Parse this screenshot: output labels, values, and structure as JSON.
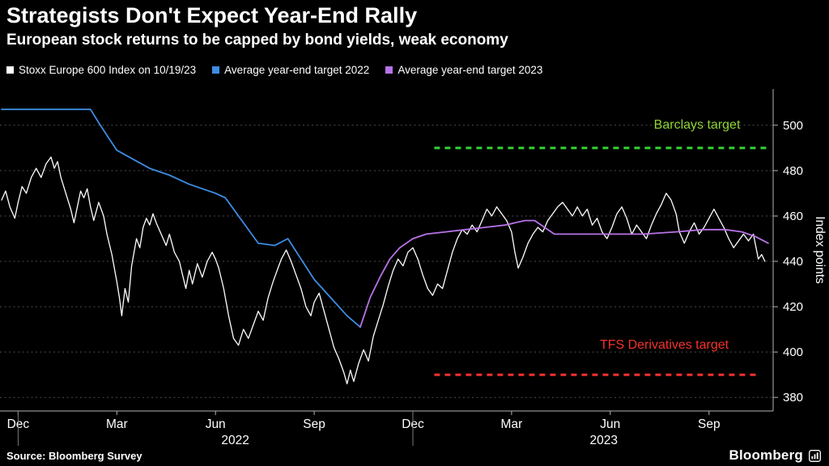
{
  "header": {
    "title": "Strategists Don't Expect Year-End Rally",
    "subtitle": "European stock returns to be capped by bond yields, weak economy"
  },
  "footer": {
    "source": "Source: Bloomberg Survey",
    "brand": "Bloomberg"
  },
  "chart_data": {
    "type": "line",
    "x_unit": "months from Dec 2021",
    "x_range": [
      -0.55,
      22.95
    ],
    "ylim": [
      374,
      516
    ],
    "yticks": [
      380,
      400,
      420,
      440,
      460,
      480,
      500
    ],
    "ylabel": "Index points",
    "grid": true,
    "legend_position": "top",
    "x_ticks": [
      {
        "m": 0,
        "label": "Dec"
      },
      {
        "m": 3,
        "label": "Mar"
      },
      {
        "m": 6,
        "label": "Jun"
      },
      {
        "m": 9,
        "label": "Sep"
      },
      {
        "m": 12,
        "label": "Dec"
      },
      {
        "m": 15,
        "label": "Mar"
      },
      {
        "m": 18,
        "label": "Jun"
      },
      {
        "m": 21,
        "label": "Sep"
      }
    ],
    "year_labels": [
      {
        "m": 6.6,
        "label": "2022"
      },
      {
        "m": 17.8,
        "label": "2023"
      }
    ],
    "year_separators": [
      0,
      12
    ],
    "series": [
      {
        "name": "Stoxx Europe 600 Index on 10/19/23",
        "color": "#ffffff",
        "width": 1.3,
        "points": [
          [
            -0.5,
            467
          ],
          [
            -0.38,
            471
          ],
          [
            -0.25,
            464
          ],
          [
            -0.1,
            459
          ],
          [
            0,
            466
          ],
          [
            0.12,
            473
          ],
          [
            0.25,
            470
          ],
          [
            0.4,
            477
          ],
          [
            0.55,
            481
          ],
          [
            0.7,
            477
          ],
          [
            0.85,
            483
          ],
          [
            1,
            486
          ],
          [
            1.1,
            481
          ],
          [
            1.2,
            484
          ],
          [
            1.3,
            477
          ],
          [
            1.45,
            470
          ],
          [
            1.6,
            463
          ],
          [
            1.7,
            457
          ],
          [
            1.8,
            464
          ],
          [
            1.9,
            471
          ],
          [
            2,
            468
          ],
          [
            2.1,
            472
          ],
          [
            2.2,
            464
          ],
          [
            2.3,
            458
          ],
          [
            2.45,
            466
          ],
          [
            2.6,
            460
          ],
          [
            2.7,
            452
          ],
          [
            2.85,
            443
          ],
          [
            3,
            431
          ],
          [
            3.08,
            424
          ],
          [
            3.15,
            416
          ],
          [
            3.25,
            428
          ],
          [
            3.35,
            422
          ],
          [
            3.45,
            438
          ],
          [
            3.6,
            450
          ],
          [
            3.7,
            446
          ],
          [
            3.8,
            455
          ],
          [
            3.9,
            459
          ],
          [
            4,
            456
          ],
          [
            4.1,
            461
          ],
          [
            4.2,
            457
          ],
          [
            4.35,
            452
          ],
          [
            4.5,
            447
          ],
          [
            4.6,
            452
          ],
          [
            4.75,
            444
          ],
          [
            4.9,
            440
          ],
          [
            5,
            434
          ],
          [
            5.1,
            428
          ],
          [
            5.2,
            436
          ],
          [
            5.3,
            430
          ],
          [
            5.45,
            439
          ],
          [
            5.6,
            433
          ],
          [
            5.75,
            440
          ],
          [
            5.9,
            444
          ],
          [
            6,
            441
          ],
          [
            6.1,
            437
          ],
          [
            6.25,
            428
          ],
          [
            6.4,
            416
          ],
          [
            6.55,
            406
          ],
          [
            6.7,
            403
          ],
          [
            6.85,
            410
          ],
          [
            7,
            406
          ],
          [
            7.15,
            412
          ],
          [
            7.3,
            418
          ],
          [
            7.45,
            414
          ],
          [
            7.6,
            424
          ],
          [
            7.75,
            431
          ],
          [
            7.9,
            437
          ],
          [
            8,
            441
          ],
          [
            8.15,
            445
          ],
          [
            8.3,
            440
          ],
          [
            8.45,
            434
          ],
          [
            8.6,
            428
          ],
          [
            8.75,
            420
          ],
          [
            8.9,
            416
          ],
          [
            9,
            422
          ],
          [
            9.15,
            426
          ],
          [
            9.3,
            418
          ],
          [
            9.45,
            410
          ],
          [
            9.6,
            402
          ],
          [
            9.75,
            397
          ],
          [
            9.9,
            391
          ],
          [
            10,
            386
          ],
          [
            10.1,
            392
          ],
          [
            10.2,
            387
          ],
          [
            10.35,
            395
          ],
          [
            10.5,
            401
          ],
          [
            10.65,
            396
          ],
          [
            10.8,
            407
          ],
          [
            10.95,
            414
          ],
          [
            11.1,
            421
          ],
          [
            11.25,
            429
          ],
          [
            11.4,
            436
          ],
          [
            11.55,
            441
          ],
          [
            11.7,
            438
          ],
          [
            11.85,
            444
          ],
          [
            12,
            446
          ],
          [
            12.15,
            441
          ],
          [
            12.3,
            434
          ],
          [
            12.45,
            428
          ],
          [
            12.6,
            425
          ],
          [
            12.75,
            430
          ],
          [
            12.9,
            428
          ],
          [
            13.05,
            436
          ],
          [
            13.2,
            444
          ],
          [
            13.35,
            450
          ],
          [
            13.5,
            454
          ],
          [
            13.65,
            452
          ],
          [
            13.8,
            456
          ],
          [
            13.95,
            453
          ],
          [
            14.1,
            458
          ],
          [
            14.25,
            463
          ],
          [
            14.4,
            460
          ],
          [
            14.55,
            464
          ],
          [
            14.7,
            461
          ],
          [
            14.85,
            458
          ],
          [
            15,
            453
          ],
          [
            15.1,
            444
          ],
          [
            15.2,
            437
          ],
          [
            15.35,
            442
          ],
          [
            15.5,
            448
          ],
          [
            15.65,
            452
          ],
          [
            15.8,
            455
          ],
          [
            15.95,
            453
          ],
          [
            16.1,
            458
          ],
          [
            16.25,
            461
          ],
          [
            16.4,
            464
          ],
          [
            16.55,
            466
          ],
          [
            16.7,
            463
          ],
          [
            16.85,
            460
          ],
          [
            17,
            464
          ],
          [
            17.15,
            460
          ],
          [
            17.3,
            463
          ],
          [
            17.45,
            456
          ],
          [
            17.6,
            459
          ],
          [
            17.75,
            453
          ],
          [
            17.9,
            450
          ],
          [
            18.05,
            455
          ],
          [
            18.2,
            461
          ],
          [
            18.35,
            464
          ],
          [
            18.5,
            459
          ],
          [
            18.65,
            452
          ],
          [
            18.8,
            456
          ],
          [
            18.95,
            453
          ],
          [
            19.1,
            450
          ],
          [
            19.25,
            456
          ],
          [
            19.4,
            461
          ],
          [
            19.55,
            465
          ],
          [
            19.7,
            470
          ],
          [
            19.85,
            467
          ],
          [
            20,
            461
          ],
          [
            20.1,
            453
          ],
          [
            20.25,
            448
          ],
          [
            20.4,
            453
          ],
          [
            20.55,
            457
          ],
          [
            20.7,
            452
          ],
          [
            20.85,
            455
          ],
          [
            21,
            459
          ],
          [
            21.15,
            463
          ],
          [
            21.3,
            459
          ],
          [
            21.45,
            455
          ],
          [
            21.6,
            450
          ],
          [
            21.75,
            446
          ],
          [
            21.9,
            449
          ],
          [
            22.05,
            452
          ],
          [
            22.2,
            449
          ],
          [
            22.35,
            452
          ],
          [
            22.5,
            441
          ],
          [
            22.6,
            443
          ],
          [
            22.7,
            440
          ]
        ]
      },
      {
        "name": "Average year-end target 2022",
        "color": "#3d8de3",
        "width": 1.8,
        "points": [
          [
            -0.5,
            507
          ],
          [
            0.5,
            507
          ],
          [
            1.5,
            507
          ],
          [
            2.2,
            507
          ],
          [
            2.5,
            500
          ],
          [
            3,
            489
          ],
          [
            3.5,
            485
          ],
          [
            4,
            481
          ],
          [
            4.6,
            478
          ],
          [
            5.2,
            474
          ],
          [
            6,
            470
          ],
          [
            6.3,
            468
          ],
          [
            6.8,
            458
          ],
          [
            7.3,
            448
          ],
          [
            7.8,
            447
          ],
          [
            8.2,
            450
          ],
          [
            8.6,
            441
          ],
          [
            9,
            432
          ],
          [
            9.5,
            424
          ],
          [
            10,
            416
          ],
          [
            10.4,
            411
          ]
        ]
      },
      {
        "name": "Average year-end target 2023",
        "color": "#b873e8",
        "width": 1.8,
        "points": [
          [
            10.4,
            411
          ],
          [
            10.7,
            424
          ],
          [
            11,
            433
          ],
          [
            11.3,
            441
          ],
          [
            11.6,
            446
          ],
          [
            12,
            450
          ],
          [
            12.4,
            452
          ],
          [
            13,
            453
          ],
          [
            13.6,
            454
          ],
          [
            14.2,
            455
          ],
          [
            14.8,
            456
          ],
          [
            15.4,
            458
          ],
          [
            15.7,
            458
          ],
          [
            16,
            455
          ],
          [
            16.3,
            452
          ],
          [
            17,
            452
          ],
          [
            18,
            452
          ],
          [
            19,
            452
          ],
          [
            20,
            453
          ],
          [
            20.8,
            454
          ],
          [
            21.5,
            454
          ],
          [
            22,
            453
          ],
          [
            22.4,
            451
          ],
          [
            22.8,
            448
          ]
        ]
      }
    ],
    "reference_lines": [
      {
        "label": "Barclays target",
        "value": 490,
        "color": "#35d435",
        "label_color": "#8fd432",
        "x_start": 12.65,
        "x_end": 22.85,
        "label_m": 21.95,
        "label_value": 498.5
      },
      {
        "label": "TFS Derivatives target",
        "value": 390,
        "color": "#f5312c",
        "label_color": "#f5312c",
        "x_start": 12.65,
        "x_end": 22.55,
        "label_m": 21.6,
        "label_value": 401.5
      }
    ]
  }
}
